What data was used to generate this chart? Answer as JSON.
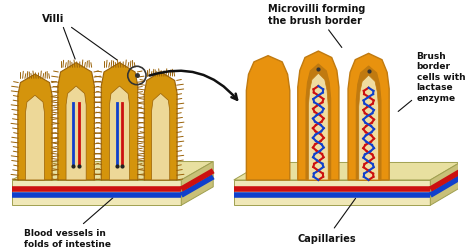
{
  "bg_color": "#ffffff",
  "villi_outer_color": "#C8860A",
  "villi_body_color": "#D4940C",
  "villi_inner_color": "#EDD898",
  "villi_hair_color": "#9A6208",
  "microvilli_color": "#E8920E",
  "microvilli_outer_ring": "#C07A10",
  "microvilli_inner_color": "#F0DCA0",
  "base_top_color": "#E8E0A0",
  "base_front_color": "#F0E8B8",
  "base_side_color": "#C8C078",
  "base_edge_color": "#A0A050",
  "red_vessel": "#CC1010",
  "blue_vessel": "#1040CC",
  "text_color": "#111111",
  "label_villi": "Villi",
  "label_blood": "Blood vessels in\nfolds of intestine",
  "label_microvilli": "Microvilli forming\nthe brush border",
  "label_brush": "Brush\nborder\ncells with\nlactase\nenzyme",
  "label_capillaries": "Capillaries",
  "fig_width": 4.74,
  "fig_height": 2.53,
  "dpi": 100
}
